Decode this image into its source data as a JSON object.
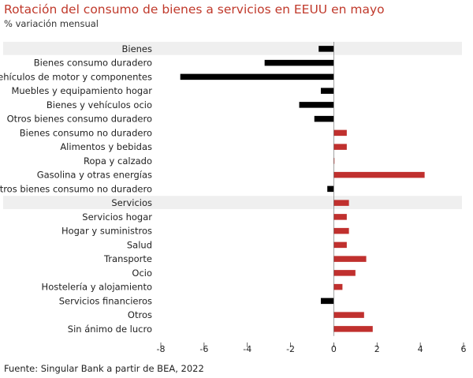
{
  "title": "Rotación del consumo de bienes a servicios en EEUU en mayo",
  "subtitle": "% variación mensual",
  "source": "Fuente: Singular Bank a partir de BEA, 2022",
  "colors": {
    "title": "#c0392b",
    "positive": "#c0302e",
    "negative": "#000000",
    "header_band": "#efefef"
  },
  "chart_data": {
    "type": "bar",
    "orientation": "horizontal",
    "categories": [
      "Bienes",
      "Bienes consumo duradero",
      "Vehículos de motor y componentes",
      "Muebles y equipamiento hogar",
      "Bienes y vehículos ocio",
      "Otros bienes consumo duradero",
      "Bienes consumo no duradero",
      "Alimentos y bebidas",
      "Ropa y calzado",
      "Gasolina y otras energías",
      "Otros bienes consumo no duradero",
      "Servicios",
      "Servicios hogar",
      "Hogar y suministros",
      "Salud",
      "Transporte",
      "Ocio",
      "Hostelería y alojamiento",
      "Servicios financieros",
      "Otros",
      "Sin ánimo de lucro"
    ],
    "values": [
      -0.7,
      -3.2,
      -7.1,
      -0.6,
      -1.6,
      -0.9,
      0.6,
      0.6,
      0.0,
      4.2,
      -0.3,
      0.7,
      0.6,
      0.7,
      0.6,
      1.5,
      1.0,
      0.4,
      -0.6,
      1.4,
      1.8
    ],
    "highlighted": [
      "Bienes",
      "Servicios"
    ],
    "xlim": [
      -8,
      6
    ],
    "xticks": [
      -8,
      -6,
      -4,
      -2,
      0,
      2,
      4,
      6
    ],
    "xlabel": "",
    "ylabel": "",
    "grid": false
  }
}
